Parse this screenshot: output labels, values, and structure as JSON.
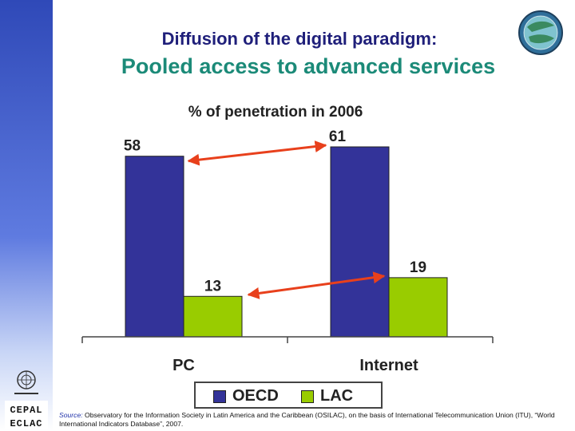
{
  "header": {
    "title_line1": "Diffusion of the digital paradigm:",
    "title_line2": "Pooled access to advanced services"
  },
  "colors": {
    "oecd": "#333399",
    "lac": "#99cc00",
    "arrow": "#e8401c",
    "title_line2": "#1b8a78"
  },
  "icons": [
    "globe-logo-icon",
    "united-nations-emblem-icon",
    "cepal-logo-icon"
  ],
  "chart_data": {
    "type": "bar",
    "title": "% of penetration in 2006",
    "categories": [
      "PC",
      "Internet"
    ],
    "series": [
      {
        "name": "OECD",
        "values": [
          58,
          61
        ]
      },
      {
        "name": "LAC",
        "values": [
          13,
          19
        ]
      }
    ],
    "data_labels": [
      "58",
      "13",
      "61",
      "19"
    ],
    "ylim": [
      0,
      61
    ],
    "grid": false,
    "legend_placement": "bottom",
    "annotations": "two red double-headed arrows linking OECD tops and LAC tops"
  },
  "logos": {
    "cepal_text": "CEPAL ECLAC"
  },
  "source": {
    "label": "Source:",
    "text": " Observatory for the Information Society in Latin America and the Caribbean (OSILAC), on the basis of International Telecommunication Union (ITU), “World International Indicators Database”, 2007."
  }
}
